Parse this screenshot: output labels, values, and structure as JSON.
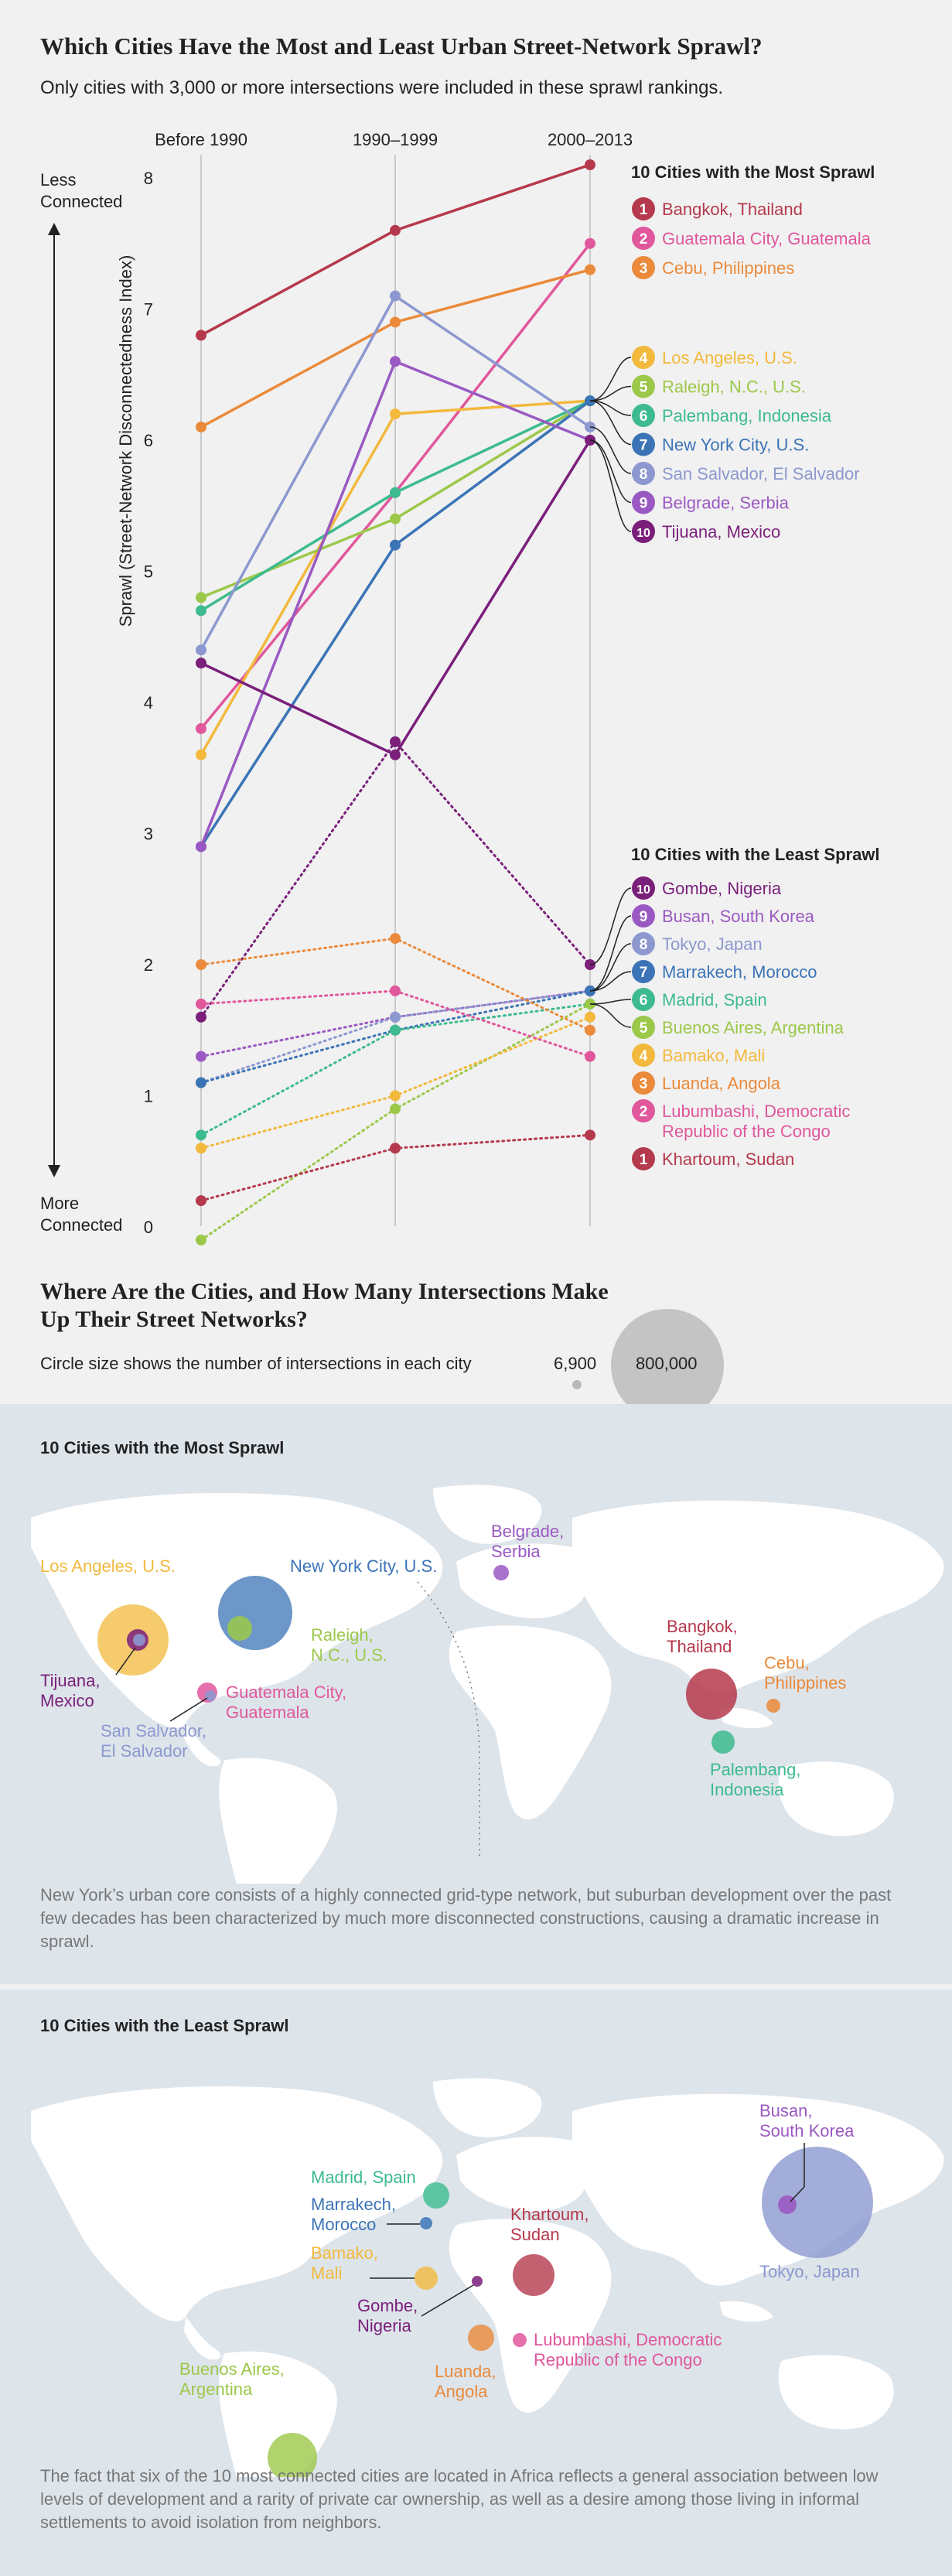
{
  "title": "Which Cities Have the Most and Least Urban Street-Network Sprawl?",
  "subtitle": "Only cities with 3,000 or more intersections were included in these sprawl rankings.",
  "colors": {
    "1": "#b5394c",
    "2": "#e0579c",
    "3": "#ea8a3a",
    "4": "#f2b93d",
    "5": "#9cc84a",
    "6": "#3dbb8e",
    "7": "#3b74b6",
    "8": "#8c98cf",
    "9": "#9a59c2",
    "10": "#7a1f7a"
  },
  "chart_data": {
    "type": "line",
    "categories": [
      "Before 1990",
      "1990–1999",
      "2000–2013"
    ],
    "ylabel": "Sprawl (Street-Network Disconnectedness Index)",
    "ylim": [
      0,
      8
    ],
    "yticks": [
      "0",
      "1",
      "2",
      "3",
      "4",
      "5",
      "6",
      "7",
      "8"
    ],
    "ytop_label": [
      "Less",
      "Connected"
    ],
    "ybottom_label": [
      "More",
      "Connected"
    ],
    "most_heading": "10 Cities with the Most Sprawl",
    "least_heading": "10 Cities with the Least Sprawl",
    "most_series": [
      {
        "rank": "1",
        "name": "Bangkok, Thailand",
        "values": [
          6.8,
          7.6,
          8.1
        ]
      },
      {
        "rank": "2",
        "name": "Guatemala City, Guatemala",
        "values": [
          3.8,
          5.6,
          7.5
        ]
      },
      {
        "rank": "3",
        "name": "Cebu, Philippines",
        "values": [
          6.1,
          6.9,
          7.3
        ]
      },
      {
        "rank": "4",
        "name": "Los Angeles, U.S.",
        "values": [
          3.6,
          6.2,
          6.3
        ]
      },
      {
        "rank": "5",
        "name": "Raleigh, N.C., U.S.",
        "values": [
          4.8,
          5.4,
          6.3
        ]
      },
      {
        "rank": "6",
        "name": "Palembang, Indonesia",
        "values": [
          4.7,
          5.6,
          6.3
        ]
      },
      {
        "rank": "7",
        "name": "New York City, U.S.",
        "values": [
          2.9,
          5.2,
          6.3
        ]
      },
      {
        "rank": "8",
        "name": "San Salvador, El Salvador",
        "values": [
          4.4,
          7.1,
          6.1
        ]
      },
      {
        "rank": "9",
        "name": "Belgrade, Serbia",
        "values": [
          2.9,
          6.6,
          6.0
        ]
      },
      {
        "rank": "10",
        "name": "Tijuana, Mexico",
        "values": [
          4.3,
          3.6,
          6.0
        ]
      }
    ],
    "least_series": [
      {
        "rank": "10",
        "name": "Gombe, Nigeria",
        "values": [
          1.6,
          3.7,
          2.0
        ]
      },
      {
        "rank": "9",
        "name": "Busan, South Korea",
        "values": [
          1.3,
          1.6,
          1.8
        ]
      },
      {
        "rank": "8",
        "name": "Tokyo, Japan",
        "values": [
          1.1,
          1.6,
          1.8
        ]
      },
      {
        "rank": "7",
        "name": "Marrakech, Morocco",
        "values": [
          1.1,
          1.5,
          1.8
        ]
      },
      {
        "rank": "6",
        "name": "Madrid, Spain",
        "values": [
          0.7,
          1.5,
          1.7
        ]
      },
      {
        "rank": "5",
        "name": "Buenos Aires, Argentina",
        "values": [
          -0.1,
          0.9,
          1.7
        ]
      },
      {
        "rank": "4",
        "name": "Bamako, Mali",
        "values": [
          0.6,
          1.0,
          1.6
        ]
      },
      {
        "rank": "3",
        "name": "Luanda, Angola",
        "values": [
          2.0,
          2.2,
          1.5
        ]
      },
      {
        "rank": "2",
        "name": "Lubumbashi, Democratic Republic of the Congo",
        "values": [
          1.7,
          1.8,
          1.3
        ]
      },
      {
        "rank": "1",
        "name": "Khartoum, Sudan",
        "values": [
          0.2,
          0.6,
          0.7
        ]
      }
    ]
  },
  "section2": {
    "title": "Where Are the Cities, and How Many Intersections Make Up Their Street Networks?",
    "note": "Circle size shows the number of intersections in each city",
    "size_small": "6,900",
    "size_large": "800,000"
  },
  "map_most": {
    "heading": "10 Cities with the Most Sprawl",
    "caption": "New York’s urban core consists of a highly connected grid-type network, but suburban development over the past few decades has been characterized by much more disconnected constructions, causing a dramatic increase in sprawl.",
    "labels": {
      "los_angeles": "Los Angeles, U.S.",
      "new_york": "New York City, U.S.",
      "raleigh": [
        "Raleigh,",
        "N.C., U.S."
      ],
      "tijuana": [
        "Tijuana,",
        "Mexico"
      ],
      "guatemala": [
        "Guatemala City,",
        "Guatemala"
      ],
      "san_salvador": [
        "San Salvador,",
        "El Salvador"
      ],
      "belgrade": [
        "Belgrade,",
        "Serbia"
      ],
      "bangkok": [
        "Bangkok,",
        "Thailand"
      ],
      "cebu": [
        "Cebu,",
        "Philippines"
      ],
      "palembang": [
        "Palembang,",
        "Indonesia"
      ]
    }
  },
  "map_least": {
    "heading": "10 Cities with the Least Sprawl",
    "caption": "The fact that six of the 10 most connected cities are located in Africa reflects a general association between low levels of development and a rarity of private car ownership, as well as a desire among those living in informal settlements to avoid isolation from neighbors.",
    "labels": {
      "madrid": "Madrid, Spain",
      "marrakech": [
        "Marrakech,",
        "Morocco"
      ],
      "bamako": [
        "Bamako,",
        "Mali"
      ],
      "gombe": [
        "Gombe,",
        "Nigeria"
      ],
      "khartoum": [
        "Khartoum,",
        "Sudan"
      ],
      "luanda": [
        "Luanda,",
        "Angola"
      ],
      "lubumbashi": [
        "Lubumbashi, Democratic",
        "Republic of the Congo"
      ],
      "buenos_aires": [
        "Buenos Aires,",
        "Argentina"
      ],
      "busan": [
        "Busan,",
        "South Korea"
      ],
      "tokyo": "Tokyo, Japan"
    }
  }
}
